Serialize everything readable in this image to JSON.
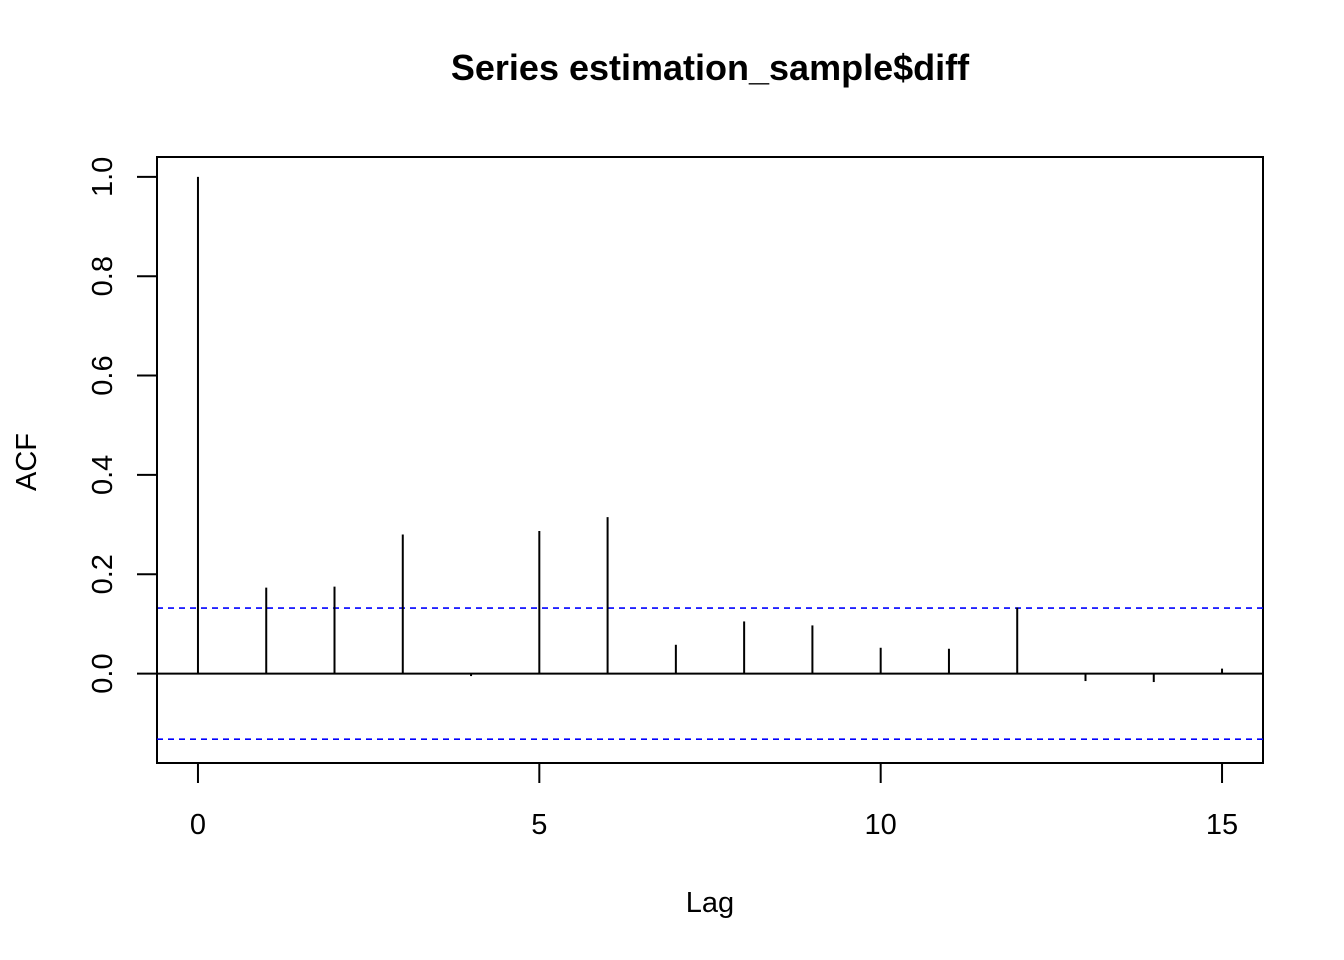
{
  "chart_data": {
    "type": "bar",
    "title": "Series  estimation_sample$diff",
    "xlabel": "Lag",
    "ylabel": "ACF",
    "xlim": [
      -0.6,
      15.6
    ],
    "ylim": [
      -0.18,
      1.04
    ],
    "x_ticks": [
      0,
      5,
      10,
      15
    ],
    "x_tick_labels": [
      "0",
      "5",
      "10",
      "15"
    ],
    "y_ticks": [
      0.0,
      0.2,
      0.4,
      0.6,
      0.8,
      1.0
    ],
    "y_tick_labels": [
      "0.0",
      "0.2",
      "0.4",
      "0.6",
      "0.8",
      "1.0"
    ],
    "lags": [
      0,
      1,
      2,
      3,
      4,
      5,
      6,
      7,
      8,
      9,
      10,
      11,
      12,
      13,
      14,
      15
    ],
    "acf": [
      1.0,
      0.173,
      0.175,
      0.28,
      -0.005,
      0.287,
      0.315,
      0.058,
      0.105,
      0.097,
      0.052,
      0.05,
      0.133,
      -0.015,
      -0.017,
      0.01
    ],
    "confidence_bound": 0.132,
    "colors": {
      "bars": "#000000",
      "bounds": "#0000ff",
      "zero_line": "#000000"
    },
    "grid": false
  }
}
